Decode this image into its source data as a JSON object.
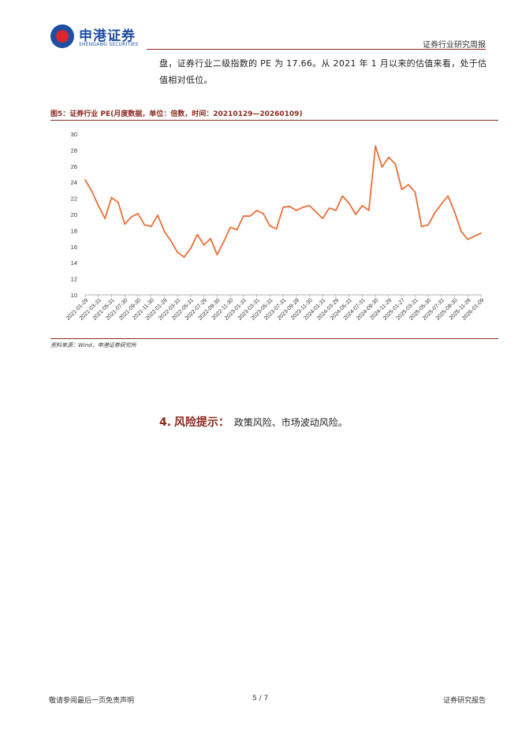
{
  "header": {
    "logo_cn": "申港证券",
    "logo_en": "SHENGANG SECURITIES",
    "report_type": "证券行业研究周报"
  },
  "paragraph": {
    "text": "盘，证券行业二级指数的 PE 为 17.66。从 2021 年 1 月以来的估值来看，处于估值相对低位。"
  },
  "figure": {
    "title": "图5：证券行业 PE(月度数据，单位：倍数，时间：20210129—20260109)",
    "source": "资料来源：Wind，申港证券研究所"
  },
  "section": {
    "number": "4.",
    "heading": "风险提示：",
    "text": "政策风险、市场波动风险。"
  },
  "footer": {
    "left": "敬请参阅最后一页免责声明",
    "page": "5 / 7",
    "right": "证券研究报告"
  },
  "chart_data": {
    "type": "line",
    "title": "",
    "xlabel": "",
    "ylabel": "",
    "ylim": [
      10,
      30
    ],
    "yticks": [
      10,
      12,
      14,
      16,
      18,
      20,
      22,
      24,
      26,
      28,
      30
    ],
    "grid": false,
    "legend": "none",
    "color": "#e8703a",
    "tick_labels": [
      "2021-01-29",
      "2021-03-31",
      "2021-05-31",
      "2021-07-30",
      "2021-09-30",
      "2021-11-30",
      "2022-01-28",
      "2022-03-31",
      "2022-05-31",
      "2022-07-29",
      "2022-09-30",
      "2022-11-30",
      "2023-01-31",
      "2023-03-31",
      "2023-05-31",
      "2023-07-31",
      "2023-09-28",
      "2023-11-30",
      "2024-01-31",
      "2024-03-29",
      "2024-05-31",
      "2024-07-31",
      "2024-09-30",
      "2024-11-29",
      "2025-01-27",
      "2025-03-31",
      "2025-05-30",
      "2025-07-31",
      "2025-09-30",
      "2025-11-28",
      "2026-01-09"
    ],
    "values": [
      24.3,
      22.9,
      21.1,
      19.5,
      22.1,
      21.5,
      18.8,
      19.7,
      20.1,
      18.7,
      18.5,
      19.9,
      17.9,
      16.7,
      15.3,
      14.7,
      15.8,
      17.5,
      16.2,
      17.0,
      15.0,
      16.6,
      18.4,
      18.1,
      19.8,
      19.8,
      20.5,
      20.1,
      18.6,
      18.2,
      20.9,
      21.0,
      20.5,
      20.9,
      21.1,
      20.3,
      19.5,
      20.8,
      20.5,
      22.3,
      21.4,
      20.0,
      21.1,
      20.5,
      28.5,
      25.9,
      27.1,
      26.3,
      23.1,
      23.7,
      22.8,
      18.5,
      18.7,
      20.2,
      21.3,
      22.3,
      20.3,
      17.9,
      16.9,
      17.3,
      17.66
    ]
  }
}
